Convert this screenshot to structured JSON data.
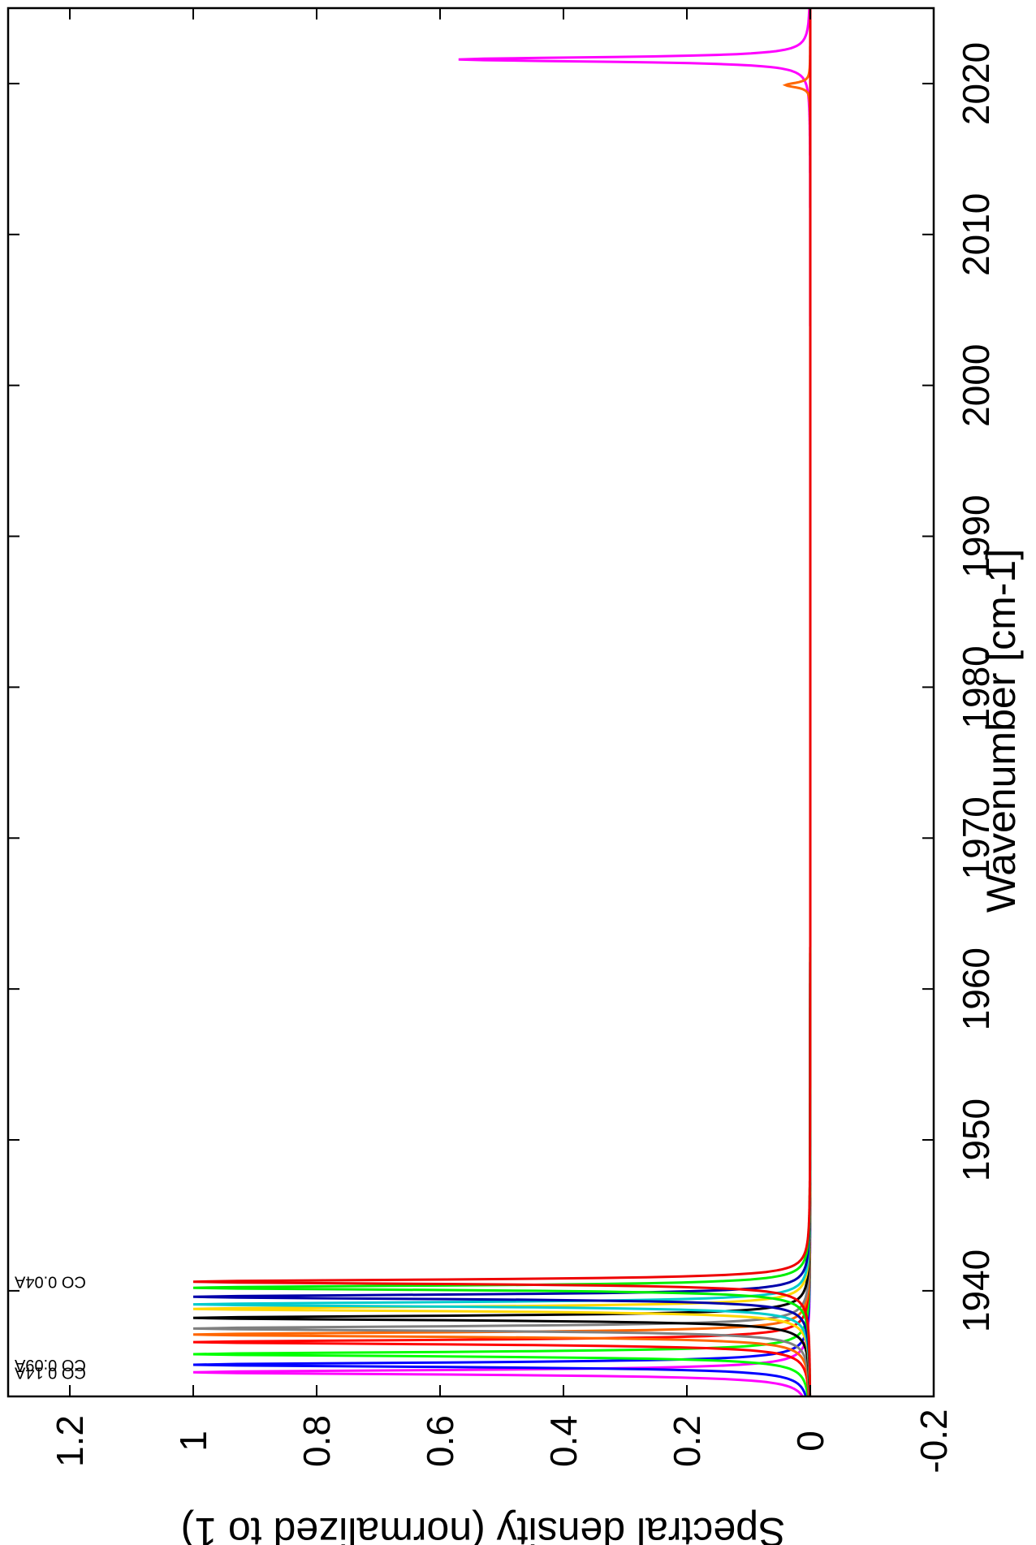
{
  "chart_data": {
    "type": "line",
    "orientation": "rotated-90",
    "xlabel": "Wavenumber [cm-1]",
    "ylabel": "Spectral density (normalized to 1)",
    "xlim": [
      1933,
      2025
    ],
    "ylim": [
      -0.2,
      1.3
    ],
    "x_ticks": [
      1940,
      1950,
      1960,
      1970,
      1980,
      1990,
      2000,
      2010,
      2020
    ],
    "y_ticks": [
      -0.2,
      0,
      0.2,
      0.4,
      0.6,
      0.8,
      1,
      1.2
    ],
    "x_tick_labels": [
      "1940",
      "1950",
      "1960",
      "1970",
      "1980",
      "1990",
      "2000",
      "2010",
      "2020"
    ],
    "y_tick_labels": [
      "-0.2",
      "0",
      "0.2",
      "0.4",
      "0.6",
      "0.8",
      "1",
      "1.2"
    ],
    "grid": false,
    "legend_note": "overlapping illegible series labels at left edge",
    "series": [
      {
        "color": "#ff00ff",
        "peaks": [
          {
            "x": 1934.6,
            "y": 1.0
          },
          {
            "x": 2021.6,
            "y": 0.57
          }
        ],
        "label": "CO 0.14A"
      },
      {
        "color": "#0000ff",
        "peaks": [
          {
            "x": 1935.1,
            "y": 1.0
          }
        ],
        "label": "CO 0.09A"
      },
      {
        "color": "#00ff00",
        "peaks": [
          {
            "x": 1935.8,
            "y": 1.0
          }
        ],
        "label": ""
      },
      {
        "color": "#ff0000",
        "peaks": [
          {
            "x": 1936.6,
            "y": 1.0
          }
        ],
        "label": ""
      },
      {
        "color": "#ff6600",
        "peaks": [
          {
            "x": 1937.1,
            "y": 1.0
          },
          {
            "x": 2019.9,
            "y": 0.04
          }
        ],
        "label": ""
      },
      {
        "color": "#808080",
        "peaks": [
          {
            "x": 1937.5,
            "y": 1.0
          }
        ],
        "label": ""
      },
      {
        "color": "#000000",
        "peaks": [
          {
            "x": 1938.2,
            "y": 1.0
          }
        ],
        "label": ""
      },
      {
        "color": "#ffd700",
        "peaks": [
          {
            "x": 1938.8,
            "y": 1.0
          }
        ],
        "label": ""
      },
      {
        "color": "#00cccc",
        "peaks": [
          {
            "x": 1939.1,
            "y": 1.0
          }
        ],
        "label": ""
      },
      {
        "color": "#0000aa",
        "peaks": [
          {
            "x": 1939.6,
            "y": 1.0
          }
        ],
        "label": ""
      },
      {
        "color": "#00ee00",
        "peaks": [
          {
            "x": 1940.2,
            "y": 1.0
          }
        ],
        "label": ""
      },
      {
        "color": "#ee0000",
        "peaks": [
          {
            "x": 1940.6,
            "y": 1.0
          }
        ],
        "label": "CO 0.04A"
      }
    ]
  }
}
